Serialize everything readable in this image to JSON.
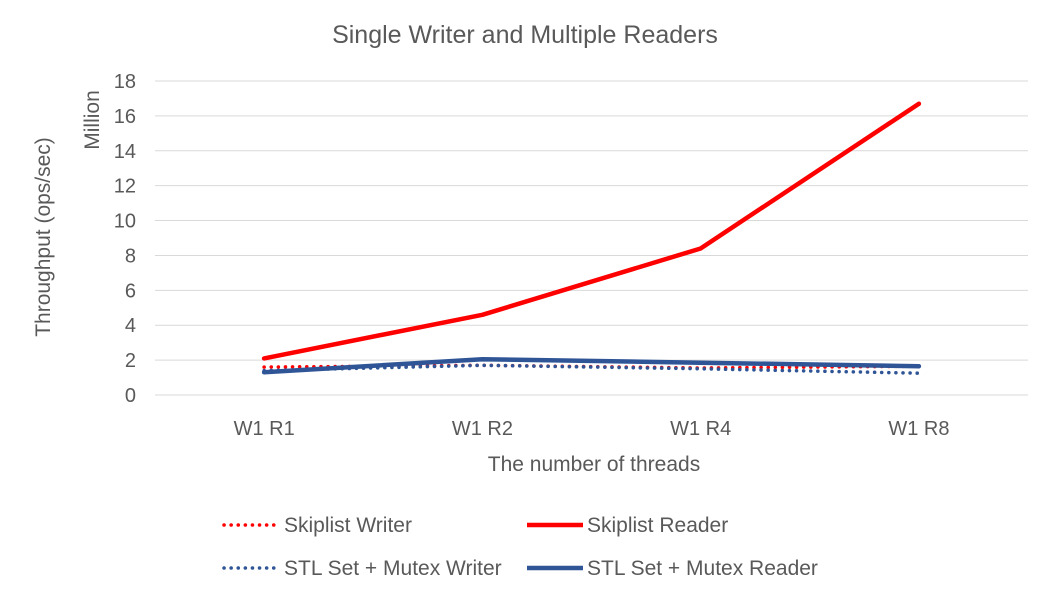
{
  "chart_data": {
    "type": "line",
    "title": "Single Writer and Multiple Readers",
    "xlabel": "The number of threads",
    "ylabel": "Throughput (ops/sec)",
    "yunit": "Million",
    "categories": [
      "W1 R1",
      "W1 R2",
      "W1 R4",
      "W1 R8"
    ],
    "ylim": [
      0,
      18
    ],
    "yticks": [
      0,
      2,
      4,
      6,
      8,
      10,
      12,
      14,
      16,
      18
    ],
    "grid": true,
    "legend": "bottom",
    "series": [
      {
        "name": "Skiplist Writer",
        "values": [
          1.6,
          1.7,
          1.55,
          1.65
        ],
        "color": "#ff0000",
        "style": "dotted"
      },
      {
        "name": "Skiplist Reader",
        "values": [
          2.1,
          4.6,
          8.4,
          16.7
        ],
        "color": "#ff0000",
        "style": "solid"
      },
      {
        "name": "STL Set + Mutex Writer",
        "values": [
          1.4,
          1.7,
          1.5,
          1.25
        ],
        "color": "#2f5597",
        "style": "dotted"
      },
      {
        "name": "STL Set + Mutex Reader",
        "values": [
          1.3,
          2.05,
          1.85,
          1.65
        ],
        "color": "#2f5597",
        "style": "solid"
      }
    ]
  }
}
